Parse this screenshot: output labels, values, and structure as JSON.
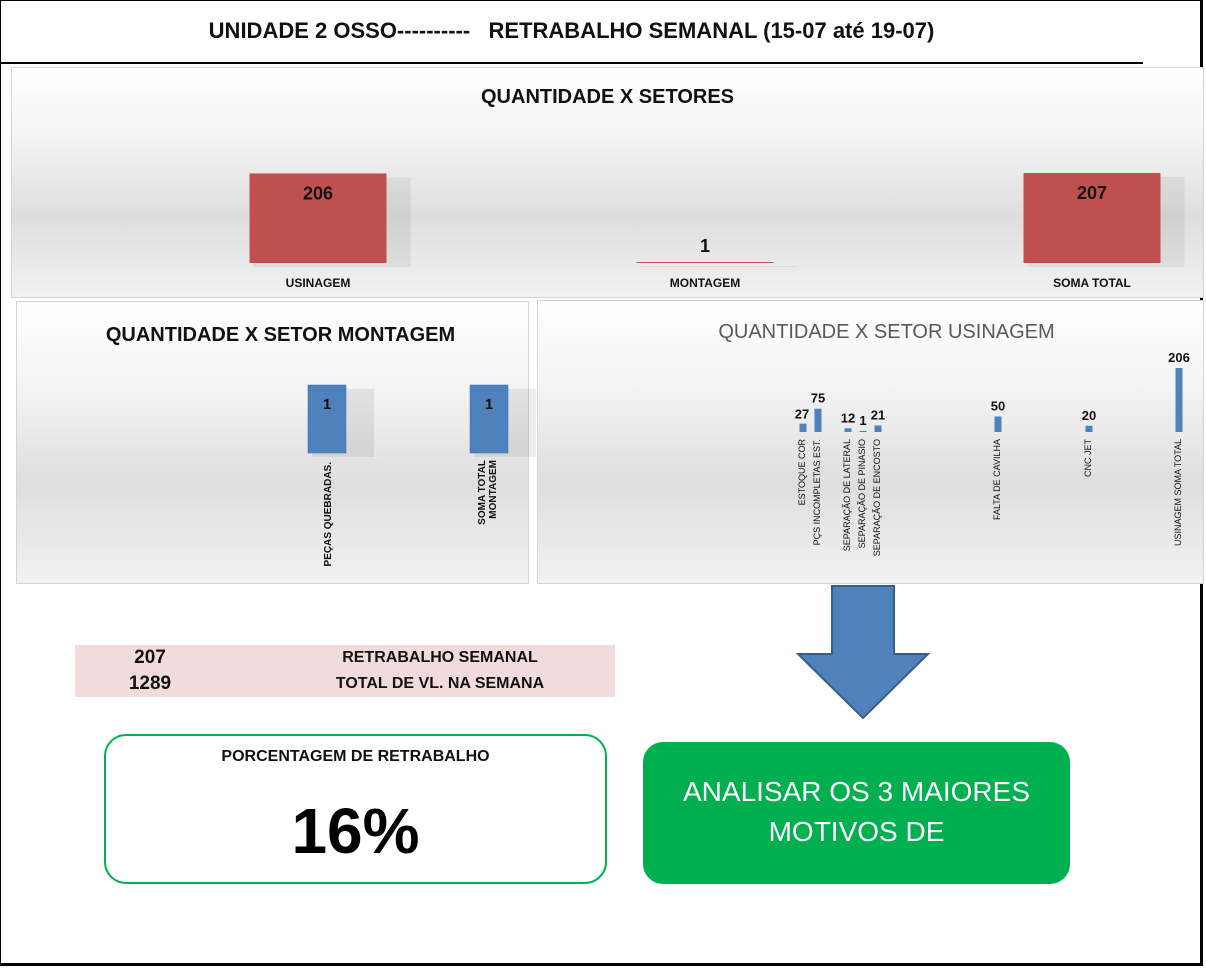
{
  "page_title": "UNIDADE 2 OSSO----------   RETRABALHO SEMANAL (15-07 até 19-07)",
  "colors": {
    "red_bar": "#c0504d",
    "blue_bar": "#4f81bd",
    "green": "#00b050",
    "pink": "#f2dcdb"
  },
  "chart_data": [
    {
      "type": "bar",
      "title": "QUANTIDADE X SETORES",
      "categories": [
        "USINAGEM",
        "MONTAGEM",
        "SOMA TOTAL"
      ],
      "values": [
        206,
        1,
        207
      ],
      "ylim": [
        0,
        207
      ],
      "grid": false,
      "legend": "none"
    },
    {
      "type": "bar",
      "title": "QUANTIDADE X SETOR MONTAGEM",
      "categories": [
        "PEÇAS QUEBRADAS.",
        "SOMA TOTAL MONTAGEM"
      ],
      "values": [
        1,
        1
      ],
      "ylim": [
        0,
        1
      ],
      "grid": false,
      "legend": "none"
    },
    {
      "type": "bar",
      "title": "QUANTIDADE X SETOR USINAGEM",
      "categories": [
        "ESTOQUE COR",
        "PÇS INCOMPLETAS EST.",
        "SEPARAÇÃO DE LATERAL",
        "SEPARAÇÃO DE PINASIO",
        "SEPARAÇÃO DE ENCOSTO",
        "FALTA DE CAVILHA",
        "CNC JET",
        "USINAGEM SOMA TOTAL"
      ],
      "values": [
        27,
        75,
        12,
        1,
        21,
        50,
        20,
        206
      ],
      "ylim": [
        0,
        206
      ],
      "grid": false,
      "legend": "none"
    }
  ],
  "summary": {
    "rows": [
      {
        "value": "207",
        "label": "RETRABALHO SEMANAL"
      },
      {
        "value": "1289",
        "label": "TOTAL DE VL. NA SEMANA"
      }
    ]
  },
  "percentage": {
    "label": "PORCENTAGEM DE RETRABALHO",
    "value": "16%"
  },
  "action": {
    "line1": "ANALISAR OS 3 MAIORES",
    "line2": "MOTIVOS DE"
  },
  "arrow": {
    "icon": "down-arrow-icon"
  }
}
